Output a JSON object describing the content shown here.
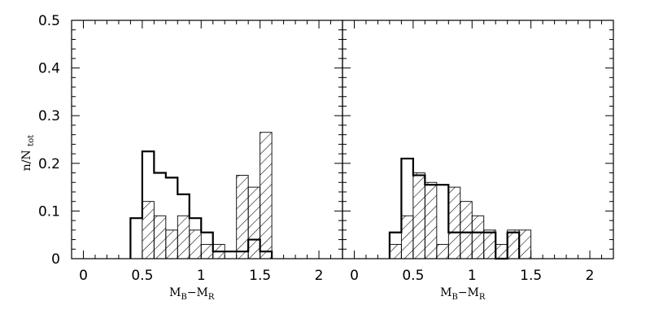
{
  "chart_data": [
    {
      "type": "histogram",
      "title": "",
      "xlabel": "M_B−M_R",
      "ylabel": "n/N_tot",
      "xlim": [
        -0.1,
        2.2
      ],
      "ylim": [
        0,
        0.5
      ],
      "x_ticks": [
        0,
        0.5,
        1,
        1.5,
        2
      ],
      "x_tick_labels": [
        "0",
        "0.5",
        "1",
        "1.5",
        "2"
      ],
      "y_ticks": [
        0,
        0.1,
        0.2,
        0.3,
        0.4,
        0.5
      ],
      "y_tick_labels": [
        "0",
        "0.1",
        "0.2",
        "0.3",
        "0.4",
        "0.5"
      ],
      "bin_width": 0.1,
      "series": [
        {
          "style": "open-thick",
          "bins": [
            {
              "x": 0.4,
              "y": 0.085
            },
            {
              "x": 0.5,
              "y": 0.225
            },
            {
              "x": 0.6,
              "y": 0.18
            },
            {
              "x": 0.7,
              "y": 0.17
            },
            {
              "x": 0.8,
              "y": 0.135
            },
            {
              "x": 0.9,
              "y": 0.085
            },
            {
              "x": 1.0,
              "y": 0.055
            },
            {
              "x": 1.1,
              "y": 0.015
            },
            {
              "x": 1.2,
              "y": 0.015
            },
            {
              "x": 1.3,
              "y": 0.015
            },
            {
              "x": 1.4,
              "y": 0.04
            },
            {
              "x": 1.5,
              "y": 0.015
            }
          ]
        },
        {
          "style": "hatched",
          "bins": [
            {
              "x": 0.5,
              "y": 0.12
            },
            {
              "x": 0.6,
              "y": 0.09
            },
            {
              "x": 0.7,
              "y": 0.06
            },
            {
              "x": 0.8,
              "y": 0.09
            },
            {
              "x": 0.9,
              "y": 0.06
            },
            {
              "x": 1.0,
              "y": 0.03
            },
            {
              "x": 1.1,
              "y": 0.03
            },
            {
              "x": 1.2,
              "y": 0.0
            },
            {
              "x": 1.3,
              "y": 0.175
            },
            {
              "x": 1.4,
              "y": 0.15
            },
            {
              "x": 1.5,
              "y": 0.265
            }
          ]
        }
      ]
    },
    {
      "type": "histogram",
      "title": "",
      "xlabel": "M_B−M_R",
      "ylabel": "",
      "xlim": [
        -0.1,
        2.2
      ],
      "ylim": [
        0,
        0.5
      ],
      "x_ticks": [
        0,
        0.5,
        1,
        1.5,
        2
      ],
      "x_tick_labels": [
        "0",
        "0.5",
        "1",
        "1.5",
        "2"
      ],
      "bin_width": 0.1,
      "series": [
        {
          "style": "open-thick",
          "bins": [
            {
              "x": 0.3,
              "y": 0.055
            },
            {
              "x": 0.4,
              "y": 0.21
            },
            {
              "x": 0.5,
              "y": 0.175
            },
            {
              "x": 0.6,
              "y": 0.155
            },
            {
              "x": 0.7,
              "y": 0.155
            },
            {
              "x": 0.8,
              "y": 0.055
            },
            {
              "x": 0.9,
              "y": 0.055
            },
            {
              "x": 1.0,
              "y": 0.055
            },
            {
              "x": 1.1,
              "y": 0.055
            },
            {
              "x": 1.2,
              "y": 0.0
            },
            {
              "x": 1.3,
              "y": 0.055
            }
          ]
        },
        {
          "style": "hatched",
          "bins": [
            {
              "x": 0.3,
              "y": 0.03
            },
            {
              "x": 0.4,
              "y": 0.09
            },
            {
              "x": 0.5,
              "y": 0.18
            },
            {
              "x": 0.6,
              "y": 0.16
            },
            {
              "x": 0.7,
              "y": 0.03
            },
            {
              "x": 0.8,
              "y": 0.15
            },
            {
              "x": 0.9,
              "y": 0.12
            },
            {
              "x": 1.0,
              "y": 0.09
            },
            {
              "x": 1.1,
              "y": 0.06
            },
            {
              "x": 1.2,
              "y": 0.03
            },
            {
              "x": 1.3,
              "y": 0.06
            },
            {
              "x": 1.4,
              "y": 0.06
            }
          ]
        }
      ]
    }
  ]
}
